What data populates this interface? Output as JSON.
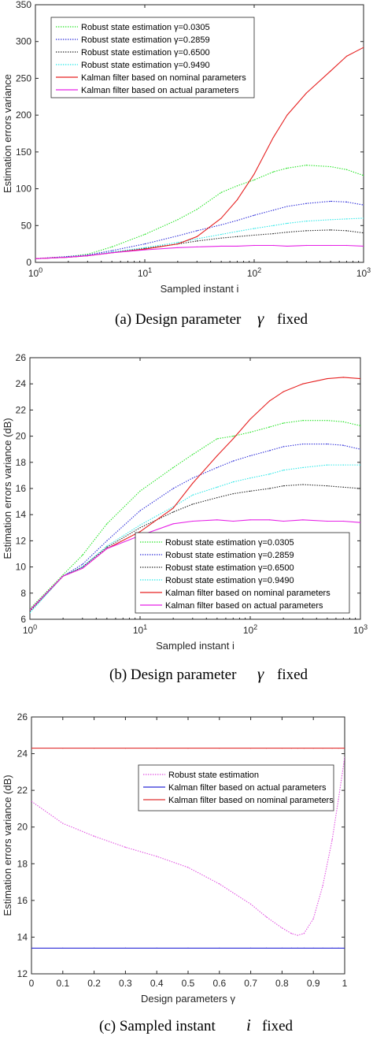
{
  "colors": {
    "robust_0305": "#21e321",
    "robust_2859": "#2727d8",
    "robust_6500": "#202020",
    "robust_9490": "#22e6e6",
    "kalman_nominal": "#e62020",
    "kalman_actual": "#e620e6",
    "robust_c": "#e04ce0",
    "kalman_actual_c": "#2a2ad6",
    "kalman_nominal_c": "#e03030"
  },
  "captions": [
    {
      "text": "(a) Design parameter",
      "symbol": "γ",
      "suffix": "fixed"
    },
    {
      "text": "(b) Design parameter",
      "symbol": "γ",
      "suffix": "fixed"
    },
    {
      "text": "(c) Sampled instant",
      "symbol": "i",
      "suffix": "fixed"
    }
  ],
  "chart_data": [
    {
      "type": "line",
      "xscale": "log",
      "xlabel": "Sampled instant i",
      "ylabel": "Estimation errors variance",
      "xlim": [
        1,
        1000
      ],
      "ylim": [
        0,
        350
      ],
      "xticks": [
        "10^0",
        "10^1",
        "10^2",
        "10^3"
      ],
      "yticks": [
        "0",
        "50",
        "100",
        "150",
        "200",
        "250",
        "300",
        "350"
      ],
      "legend_position": "top-left",
      "x": [
        1,
        2,
        3,
        5,
        10,
        20,
        30,
        50,
        70,
        100,
        150,
        200,
        300,
        500,
        700,
        1000
      ],
      "series": [
        {
          "name": "Robust state estimation γ=0.0305",
          "style": "dotted",
          "color_key": "robust_0305",
          "values": [
            5,
            8,
            11,
            21,
            38,
            58,
            72,
            95,
            104,
            112,
            123,
            128,
            132,
            130,
            126,
            118
          ]
        },
        {
          "name": "Robust state estimation γ=0.2859",
          "style": "dotted",
          "color_key": "robust_2859",
          "values": [
            5,
            8,
            10,
            16,
            25,
            36,
            43,
            51,
            57,
            64,
            71,
            76,
            80,
            83,
            82,
            78
          ]
        },
        {
          "name": "Robust state estimation γ=0.6500",
          "style": "dotted",
          "color_key": "robust_6500",
          "values": [
            5,
            7,
            9,
            14,
            19,
            25,
            29,
            33,
            35,
            37,
            39,
            41,
            43,
            44,
            43,
            40
          ]
        },
        {
          "name": "Robust state estimation γ=0.9490",
          "style": "dotted",
          "color_key": "robust_9490",
          "values": [
            5,
            7,
            9,
            14,
            20,
            27,
            32,
            38,
            42,
            46,
            50,
            53,
            56,
            58,
            59,
            60
          ]
        },
        {
          "name": "Kalman filter based on nominal parameters",
          "style": "solid",
          "color_key": "kalman_nominal",
          "values": [
            5,
            7,
            9,
            13,
            18,
            25,
            35,
            60,
            85,
            120,
            170,
            200,
            230,
            260,
            280,
            292
          ]
        },
        {
          "name": "Kalman filter based on actual parameters",
          "style": "solid",
          "color_key": "kalman_actual",
          "values": [
            5,
            7,
            9,
            13,
            17,
            20,
            21,
            22,
            22,
            23,
            23,
            22,
            23,
            23,
            23,
            22
          ]
        }
      ]
    },
    {
      "type": "line",
      "xscale": "log",
      "xlabel": "Sampled instant i",
      "ylabel": "Estimation errors variance (dB)",
      "xlim": [
        1,
        1000
      ],
      "ylim": [
        6,
        26
      ],
      "xticks": [
        "10^0",
        "10^1",
        "10^2",
        "10^3"
      ],
      "yticks": [
        "6",
        "8",
        "10",
        "12",
        "14",
        "16",
        "18",
        "20",
        "22",
        "24",
        "26"
      ],
      "legend_position": "bottom-right",
      "x": [
        1,
        2,
        3,
        5,
        10,
        20,
        30,
        50,
        70,
        100,
        150,
        200,
        300,
        500,
        700,
        1000
      ],
      "series": [
        {
          "name": "Robust state estimation γ=0.0305",
          "style": "dotted",
          "color_key": "robust_0305",
          "values": [
            6.8,
            9.4,
            10.9,
            13.3,
            15.8,
            17.6,
            18.6,
            19.8,
            20.0,
            20.3,
            20.7,
            21.0,
            21.2,
            21.2,
            21.1,
            20.8
          ]
        },
        {
          "name": "Robust state estimation γ=0.2859",
          "style": "dotted",
          "color_key": "robust_2859",
          "values": [
            6.7,
            9.3,
            10.2,
            12.0,
            14.3,
            16.0,
            16.8,
            17.6,
            18.1,
            18.5,
            18.9,
            19.2,
            19.4,
            19.4,
            19.3,
            19.0
          ]
        },
        {
          "name": "Robust state estimation γ=0.6500",
          "style": "dotted",
          "color_key": "robust_6500",
          "values": [
            6.6,
            9.3,
            10.0,
            11.5,
            13.0,
            14.2,
            14.8,
            15.3,
            15.6,
            15.8,
            16.0,
            16.2,
            16.3,
            16.2,
            16.1,
            16.0
          ]
        },
        {
          "name": "Robust state estimation γ=0.9490",
          "style": "dotted",
          "color_key": "robust_9490",
          "values": [
            6.5,
            9.3,
            10.0,
            11.6,
            13.2,
            14.6,
            15.5,
            16.1,
            16.5,
            16.8,
            17.1,
            17.4,
            17.6,
            17.8,
            17.8,
            17.8
          ]
        },
        {
          "name": "Kalman filter based on nominal parameters",
          "style": "solid",
          "color_key": "kalman_nominal",
          "values": [
            6.7,
            9.3,
            9.9,
            11.4,
            12.7,
            14.5,
            16.4,
            18.5,
            19.8,
            21.3,
            22.7,
            23.4,
            24.0,
            24.4,
            24.5,
            24.4
          ]
        },
        {
          "name": "Kalman filter based on actual parameters",
          "style": "solid",
          "color_key": "kalman_actual",
          "values": [
            6.7,
            9.3,
            9.9,
            11.4,
            12.4,
            13.3,
            13.5,
            13.6,
            13.5,
            13.6,
            13.6,
            13.5,
            13.6,
            13.5,
            13.5,
            13.4
          ]
        }
      ]
    },
    {
      "type": "line",
      "xscale": "linear",
      "xlabel": "Design parameters γ",
      "ylabel": "Estimation errors variance (dB)",
      "xlim": [
        0,
        1
      ],
      "ylim": [
        12,
        26
      ],
      "xticks": [
        "0",
        "0.1",
        "0.2",
        "0.3",
        "0.4",
        "0.5",
        "0.6",
        "0.7",
        "0.8",
        "0.9",
        "1"
      ],
      "yticks": [
        "12",
        "14",
        "16",
        "18",
        "20",
        "22",
        "24",
        "26"
      ],
      "legend_position": "top-right",
      "x": [
        0.0,
        0.1,
        0.2,
        0.3,
        0.4,
        0.5,
        0.6,
        0.7,
        0.75,
        0.8,
        0.83,
        0.85,
        0.87,
        0.9,
        0.93,
        0.96,
        0.98,
        1.0
      ],
      "series": [
        {
          "name": "Robust state estimation",
          "style": "dotted",
          "color_key": "robust_c",
          "values": [
            21.4,
            20.2,
            19.5,
            18.9,
            18.4,
            17.8,
            16.9,
            15.8,
            15.1,
            14.5,
            14.2,
            14.1,
            14.2,
            15.0,
            16.8,
            19.3,
            21.5,
            23.8
          ]
        },
        {
          "name": "Kalman filter based on actual parameters",
          "style": "solid",
          "color_key": "kalman_actual_c",
          "values": [
            13.4,
            13.4,
            13.4,
            13.4,
            13.4,
            13.4,
            13.4,
            13.4,
            13.4,
            13.4,
            13.4,
            13.4,
            13.4,
            13.4,
            13.4,
            13.4,
            13.4,
            13.4
          ]
        },
        {
          "name": "Kalman filter based on nominal parameters",
          "style": "solid",
          "color_key": "kalman_nominal_c",
          "values": [
            24.3,
            24.3,
            24.3,
            24.3,
            24.3,
            24.3,
            24.3,
            24.3,
            24.3,
            24.3,
            24.3,
            24.3,
            24.3,
            24.3,
            24.3,
            24.3,
            24.3,
            24.3
          ]
        }
      ]
    }
  ]
}
